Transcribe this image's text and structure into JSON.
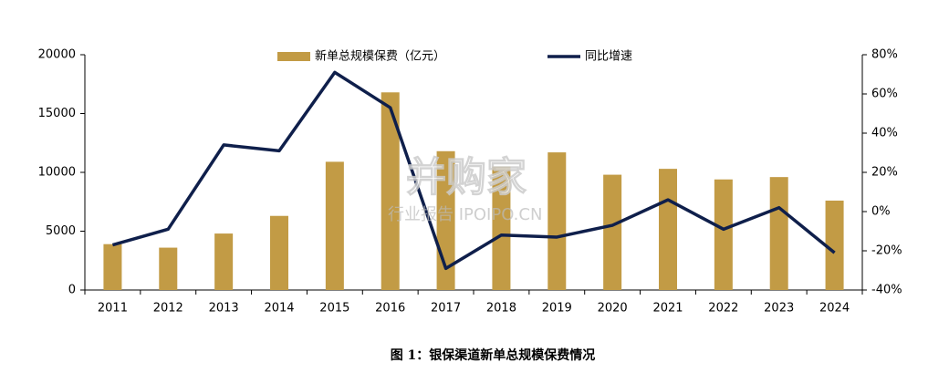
{
  "chart_data": {
    "type": "bar-line",
    "title": "图 1：银保渠道新单总规模保费情况",
    "watermark": [
      "并购家",
      "行业报告 IPOIPO.CN"
    ],
    "categories": [
      "2011",
      "2012",
      "2013",
      "2014",
      "2015",
      "2016",
      "2017",
      "2018",
      "2019",
      "2020",
      "2021",
      "2022",
      "2023",
      "2024"
    ],
    "series": [
      {
        "name": "新单总规模保费（亿元）",
        "type": "bar",
        "color": "#c29b45",
        "values": [
          3900,
          3600,
          4800,
          6300,
          10900,
          16800,
          11800,
          10500,
          11700,
          9800,
          10300,
          9400,
          9600,
          7600
        ]
      },
      {
        "name": "同比增速",
        "type": "line",
        "axis": "y2",
        "color": "#0f1f4b",
        "values": [
          -17,
          -9,
          34,
          31,
          71,
          53,
          -29,
          -12,
          -13,
          -7,
          6,
          -9,
          2,
          -21
        ]
      }
    ],
    "ylim": [
      0,
      20000
    ],
    "yticks": [
      0,
      5000,
      10000,
      15000,
      20000
    ],
    "y2lim": [
      -40,
      80
    ],
    "y2ticks": [
      {
        "value": -40,
        "label": "-40%"
      },
      {
        "value": -20,
        "label": "-20%"
      },
      {
        "value": 0,
        "label": "0%"
      },
      {
        "value": 20,
        "label": "20%"
      },
      {
        "value": 40,
        "label": "40%"
      },
      {
        "value": 60,
        "label": "60%"
      },
      {
        "value": 80,
        "label": "80%"
      }
    ],
    "grid": false
  }
}
